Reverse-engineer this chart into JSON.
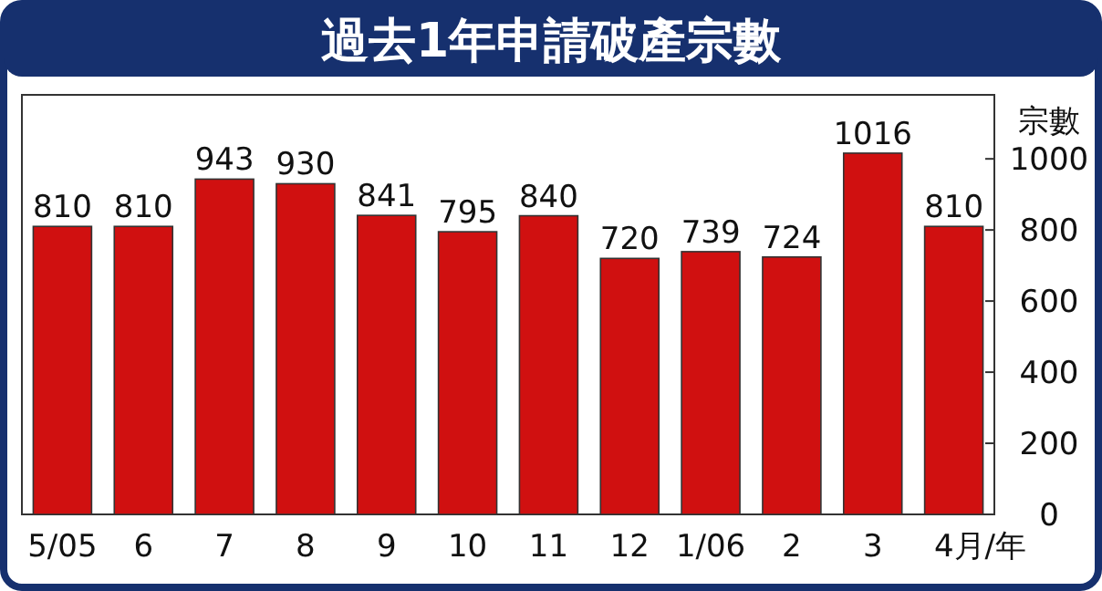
{
  "chart_data": {
    "type": "bar",
    "title": "過去1年申請破產宗數",
    "ylabel": "宗數",
    "xlabel": "月/年",
    "categories": [
      "5/05",
      "6",
      "7",
      "8",
      "9",
      "10",
      "11",
      "12",
      "1/06",
      "2",
      "3",
      "4"
    ],
    "values": [
      810,
      810,
      943,
      930,
      841,
      795,
      840,
      720,
      739,
      724,
      1016,
      810
    ],
    "color": "#d01010",
    "ylim": [
      0,
      1180
    ],
    "yticks": [
      0,
      200,
      400,
      600,
      800,
      1000
    ],
    "data_labels": true
  }
}
